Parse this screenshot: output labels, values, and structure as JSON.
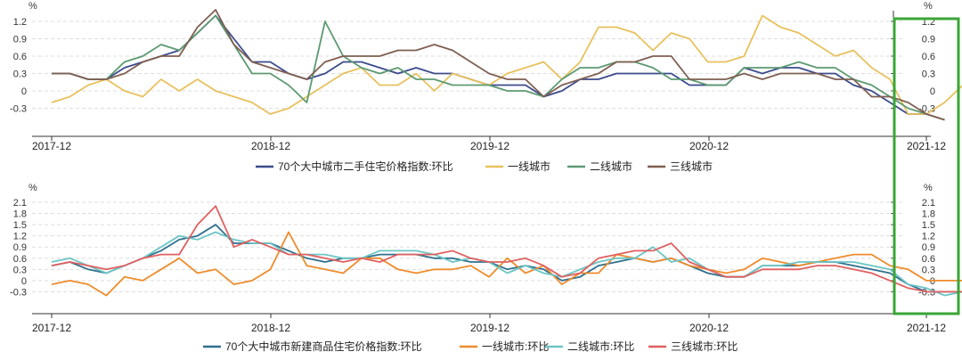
{
  "highlight_color": "#3aa635",
  "chart_data": [
    {
      "type": "line",
      "title": "",
      "unit_label": "%",
      "xlabel": "",
      "ylabel": "",
      "ylim": [
        -0.6,
        1.5
      ],
      "yticks": [
        -0.3,
        0,
        0.3,
        0.6,
        0.9,
        1.2
      ],
      "ytick_labels": [
        "-0.3",
        "0",
        "0.3",
        "0.6",
        "0.9",
        "1.2"
      ],
      "x_start": "2017-12",
      "x_end": "2021-12",
      "xtick_labels": [
        "2017-12",
        "2018-12",
        "2019-12",
        "2020-12",
        "2021-12"
      ],
      "grid": "horizontal dashed",
      "legend_position": "bottom",
      "series": [
        {
          "name": "70个大中城市二手住宅价格指数:环比",
          "color": "#3c4b8c",
          "values": [
            0.3,
            0.3,
            0.2,
            0.2,
            0.4,
            0.5,
            0.6,
            0.7,
            1.0,
            1.3,
            0.9,
            0.5,
            0.5,
            0.3,
            0.2,
            0.3,
            0.5,
            0.5,
            0.4,
            0.3,
            0.4,
            0.3,
            0.3,
            0.2,
            0.1,
            0.1,
            0.1,
            -0.1,
            0.0,
            0.2,
            0.2,
            0.3,
            0.3,
            0.3,
            0.3,
            0.1,
            0.1,
            0.1,
            0.4,
            0.3,
            0.4,
            0.4,
            0.3,
            0.3,
            0.1,
            0.0,
            -0.2,
            -0.4,
            -0.4
          ]
        },
        {
          "name": "一线城市",
          "color": "#e8c15d",
          "values": [
            -0.2,
            -0.1,
            0.1,
            0.2,
            0.0,
            -0.1,
            0.2,
            0.0,
            0.2,
            0.0,
            -0.1,
            -0.2,
            -0.4,
            -0.3,
            -0.1,
            0.1,
            0.3,
            0.4,
            0.1,
            0.1,
            0.3,
            0.0,
            0.3,
            0.2,
            0.1,
            0.3,
            0.4,
            0.5,
            0.2,
            0.5,
            1.1,
            1.1,
            1.0,
            0.7,
            1.0,
            0.9,
            0.5,
            0.5,
            0.6,
            1.3,
            1.1,
            1.0,
            0.8,
            0.6,
            0.7,
            0.4,
            0.2,
            -0.4,
            -0.4,
            -0.2,
            0.1
          ]
        },
        {
          "name": "二线城市",
          "color": "#5c9a72",
          "values": [
            0.3,
            0.3,
            0.2,
            0.2,
            0.5,
            0.6,
            0.8,
            0.7,
            1.0,
            1.3,
            0.8,
            0.3,
            0.3,
            0.1,
            -0.2,
            1.2,
            0.6,
            0.4,
            0.3,
            0.4,
            0.2,
            0.2,
            0.1,
            0.1,
            0.1,
            0.0,
            0.0,
            -0.1,
            0.2,
            0.4,
            0.4,
            0.5,
            0.5,
            0.4,
            0.2,
            0.2,
            0.1,
            0.1,
            0.4,
            0.4,
            0.4,
            0.5,
            0.4,
            0.4,
            0.2,
            0.1,
            -0.1,
            -0.3,
            -0.4,
            -0.5
          ]
        },
        {
          "name": "三线城市",
          "color": "#7f5f52",
          "values": [
            0.3,
            0.3,
            0.2,
            0.2,
            0.3,
            0.5,
            0.6,
            0.6,
            1.1,
            1.4,
            0.8,
            0.5,
            0.4,
            0.3,
            0.2,
            0.5,
            0.6,
            0.6,
            0.6,
            0.7,
            0.7,
            0.8,
            0.7,
            0.5,
            0.3,
            0.2,
            0.2,
            -0.1,
            0.1,
            0.2,
            0.3,
            0.5,
            0.5,
            0.6,
            0.6,
            0.2,
            0.2,
            0.2,
            0.3,
            0.2,
            0.3,
            0.3,
            0.3,
            0.2,
            0.2,
            -0.1,
            -0.1,
            -0.2,
            -0.4,
            -0.5
          ]
        }
      ]
    },
    {
      "type": "line",
      "title": "",
      "unit_label": "%",
      "xlabel": "",
      "ylabel": "",
      "ylim": [
        -0.6,
        2.1
      ],
      "yticks": [
        -0.3,
        0,
        0.3,
        0.6,
        0.9,
        1.2,
        1.5,
        1.8,
        2.1
      ],
      "ytick_labels": [
        "-0.3",
        "0",
        "0.3",
        "0.6",
        "0.9",
        "1.2",
        "1.5",
        "1.8",
        "2.1"
      ],
      "x_start": "2017-12",
      "x_end": "2021-12",
      "xtick_labels": [
        "2017-12",
        "2018-12",
        "2019-12",
        "2020-12",
        "2021-12"
      ],
      "grid": "horizontal dashed",
      "legend_position": "bottom",
      "series": [
        {
          "name": "70个大中城市新建商品住宅价格指数:环比",
          "color": "#2e6f8e",
          "values": [
            0.4,
            0.5,
            0.3,
            0.2,
            0.4,
            0.6,
            0.8,
            1.1,
            1.2,
            1.5,
            1.0,
            1.0,
            1.0,
            0.8,
            0.6,
            0.5,
            0.6,
            0.6,
            0.7,
            0.7,
            0.7,
            0.6,
            0.6,
            0.5,
            0.5,
            0.3,
            0.4,
            0.3,
            0.0,
            0.1,
            0.4,
            0.5,
            0.6,
            0.5,
            0.6,
            0.4,
            0.2,
            0.1,
            0.1,
            0.4,
            0.4,
            0.4,
            0.5,
            0.5,
            0.4,
            0.3,
            0.2,
            -0.1,
            -0.3,
            -0.3,
            -0.3
          ]
        },
        {
          "name": "一线城市:环比",
          "color": "#ee8c2c",
          "values": [
            -0.1,
            0.0,
            -0.1,
            -0.4,
            0.1,
            0.0,
            0.3,
            0.6,
            0.2,
            0.3,
            -0.1,
            0.0,
            0.3,
            1.3,
            0.4,
            0.3,
            0.2,
            0.6,
            0.6,
            0.3,
            0.2,
            0.3,
            0.3,
            0.4,
            0.1,
            0.6,
            0.2,
            0.4,
            -0.1,
            0.2,
            0.2,
            0.7,
            0.6,
            0.5,
            0.6,
            0.4,
            0.3,
            0.2,
            0.3,
            0.6,
            0.5,
            0.4,
            0.5,
            0.6,
            0.7,
            0.7,
            0.4,
            0.3,
            0.0,
            0.0,
            0.0,
            -0.1
          ]
        },
        {
          "name": "二线城市:环比",
          "color": "#6dc5c5",
          "values": [
            0.5,
            0.6,
            0.4,
            0.2,
            0.4,
            0.6,
            0.9,
            1.2,
            1.1,
            1.3,
            1.1,
            1.0,
            1.0,
            0.7,
            0.7,
            0.7,
            0.6,
            0.6,
            0.8,
            0.8,
            0.8,
            0.7,
            0.5,
            0.6,
            0.5,
            0.2,
            0.4,
            0.2,
            0.1,
            0.3,
            0.5,
            0.6,
            0.6,
            0.9,
            0.5,
            0.6,
            0.3,
            0.1,
            0.1,
            0.4,
            0.4,
            0.5,
            0.5,
            0.5,
            0.5,
            0.4,
            0.3,
            -0.1,
            -0.2,
            -0.4,
            -0.3
          ]
        },
        {
          "name": "三线城市:环比",
          "color": "#e06060",
          "values": [
            0.4,
            0.5,
            0.4,
            0.3,
            0.4,
            0.6,
            0.7,
            0.7,
            1.5,
            2.0,
            0.9,
            1.1,
            0.9,
            0.7,
            0.7,
            0.6,
            0.5,
            0.6,
            0.5,
            0.7,
            0.7,
            0.7,
            0.8,
            0.6,
            0.5,
            0.5,
            0.6,
            0.4,
            0.1,
            0.2,
            0.6,
            0.7,
            0.8,
            0.8,
            1.0,
            0.5,
            0.3,
            0.1,
            0.1,
            0.3,
            0.3,
            0.3,
            0.4,
            0.4,
            0.3,
            0.2,
            0.0,
            -0.2,
            -0.3,
            -0.3,
            -0.3
          ]
        }
      ]
    }
  ]
}
